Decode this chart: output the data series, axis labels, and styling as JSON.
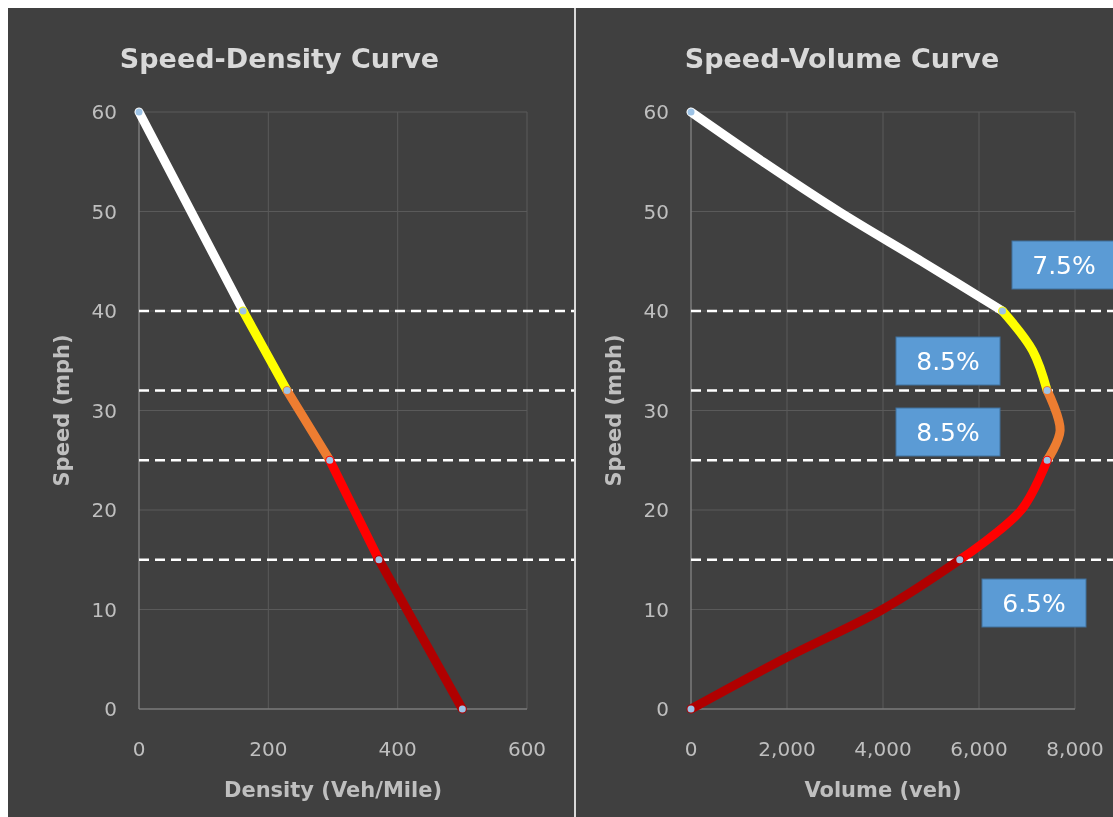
{
  "chart_data": [
    {
      "type": "line",
      "title": "Speed-Density Curve",
      "xlabel": "Density (Veh/Mile)",
      "ylabel": "Speed (mph)",
      "xlim": [
        0,
        600
      ],
      "xticks": [
        0,
        200,
        400,
        600
      ],
      "ylim": [
        0,
        60
      ],
      "yticks": [
        0,
        10,
        20,
        30,
        40,
        50,
        60
      ],
      "grid": true,
      "series": [
        {
          "color": "#ffffff",
          "x": [
            0,
            161
          ],
          "values": [
            60,
            40
          ]
        },
        {
          "color": "#ffff00",
          "x": [
            161,
            229
          ],
          "values": [
            40,
            32
          ]
        },
        {
          "color": "#ed7d31",
          "x": [
            229,
            295
          ],
          "values": [
            32,
            25
          ]
        },
        {
          "color": "#ff0000",
          "x": [
            295,
            371
          ],
          "values": [
            25,
            15
          ]
        },
        {
          "color": "#b00000",
          "x": [
            371,
            500
          ],
          "values": [
            15,
            0
          ]
        },
        {
          "type": "scatter",
          "marker": "circle",
          "color": "#9dc3e6",
          "x": [
            0,
            161,
            229,
            295,
            371,
            500
          ],
          "values": [
            60,
            40,
            32,
            25,
            15,
            0
          ]
        }
      ],
      "ref_lines": [
        {
          "axis": "y",
          "value": 40,
          "color": "#ffffff",
          "line_style": "dashed"
        },
        {
          "axis": "y",
          "value": 32,
          "color": "#ffffff",
          "line_style": "dashed"
        },
        {
          "axis": "y",
          "value": 25,
          "color": "#ffffff",
          "line_style": "dashed"
        },
        {
          "axis": "y",
          "value": 15,
          "color": "#ffffff",
          "line_style": "dashed"
        }
      ]
    },
    {
      "type": "line",
      "title": "Speed-Volume  Curve",
      "xlabel": "Volume (veh)",
      "ylabel": "Speed (mph)",
      "xlim": [
        0,
        8000
      ],
      "xticks": [
        {
          "value": 0,
          "label": "0"
        },
        {
          "value": 2000,
          "label": "2,000"
        },
        {
          "value": 4000,
          "label": "4,000"
        },
        {
          "value": 6000,
          "label": "6,000"
        },
        {
          "value": 8000,
          "label": "8,000"
        }
      ],
      "ylim": [
        0,
        60
      ],
      "yticks": [
        0,
        10,
        20,
        30,
        40,
        50,
        60
      ],
      "grid": true,
      "series": [
        {
          "color": "#ffffff",
          "x": [
            0,
            1500,
            3080,
            4800,
            6490
          ],
          "values": [
            60,
            55,
            50,
            45,
            40
          ]
        },
        {
          "color": "#ffff00",
          "x": [
            6490,
            7120,
            7420
          ],
          "values": [
            40,
            36,
            32
          ]
        },
        {
          "color": "#ed7d31",
          "x": [
            7420,
            7690,
            7420
          ],
          "values": [
            32,
            28,
            25
          ]
        },
        {
          "color": "#ff0000",
          "x": [
            7420,
            6880,
            5600
          ],
          "values": [
            25,
            20,
            15
          ]
        },
        {
          "color": "#b00000",
          "x": [
            5600,
            3990,
            1920,
            0
          ],
          "values": [
            15,
            10,
            5,
            0
          ]
        },
        {
          "type": "scatter",
          "marker": "circle",
          "color": "#9dc3e6",
          "x": [
            0,
            6490,
            7420,
            7420,
            5600,
            0
          ],
          "values": [
            60,
            40,
            32,
            25,
            15,
            0
          ]
        }
      ],
      "ref_lines": [
        {
          "axis": "y",
          "value": 40,
          "color": "#ffffff",
          "line_style": "dashed"
        },
        {
          "axis": "y",
          "value": 32,
          "color": "#ffffff",
          "line_style": "dashed"
        },
        {
          "axis": "y",
          "value": 25,
          "color": "#ffffff",
          "line_style": "dashed"
        },
        {
          "axis": "y",
          "value": 15,
          "color": "#ffffff",
          "line_style": "dashed"
        }
      ],
      "annotations": [
        "7.5%",
        "8.5%",
        "8.5%",
        "6.5%"
      ]
    }
  ]
}
